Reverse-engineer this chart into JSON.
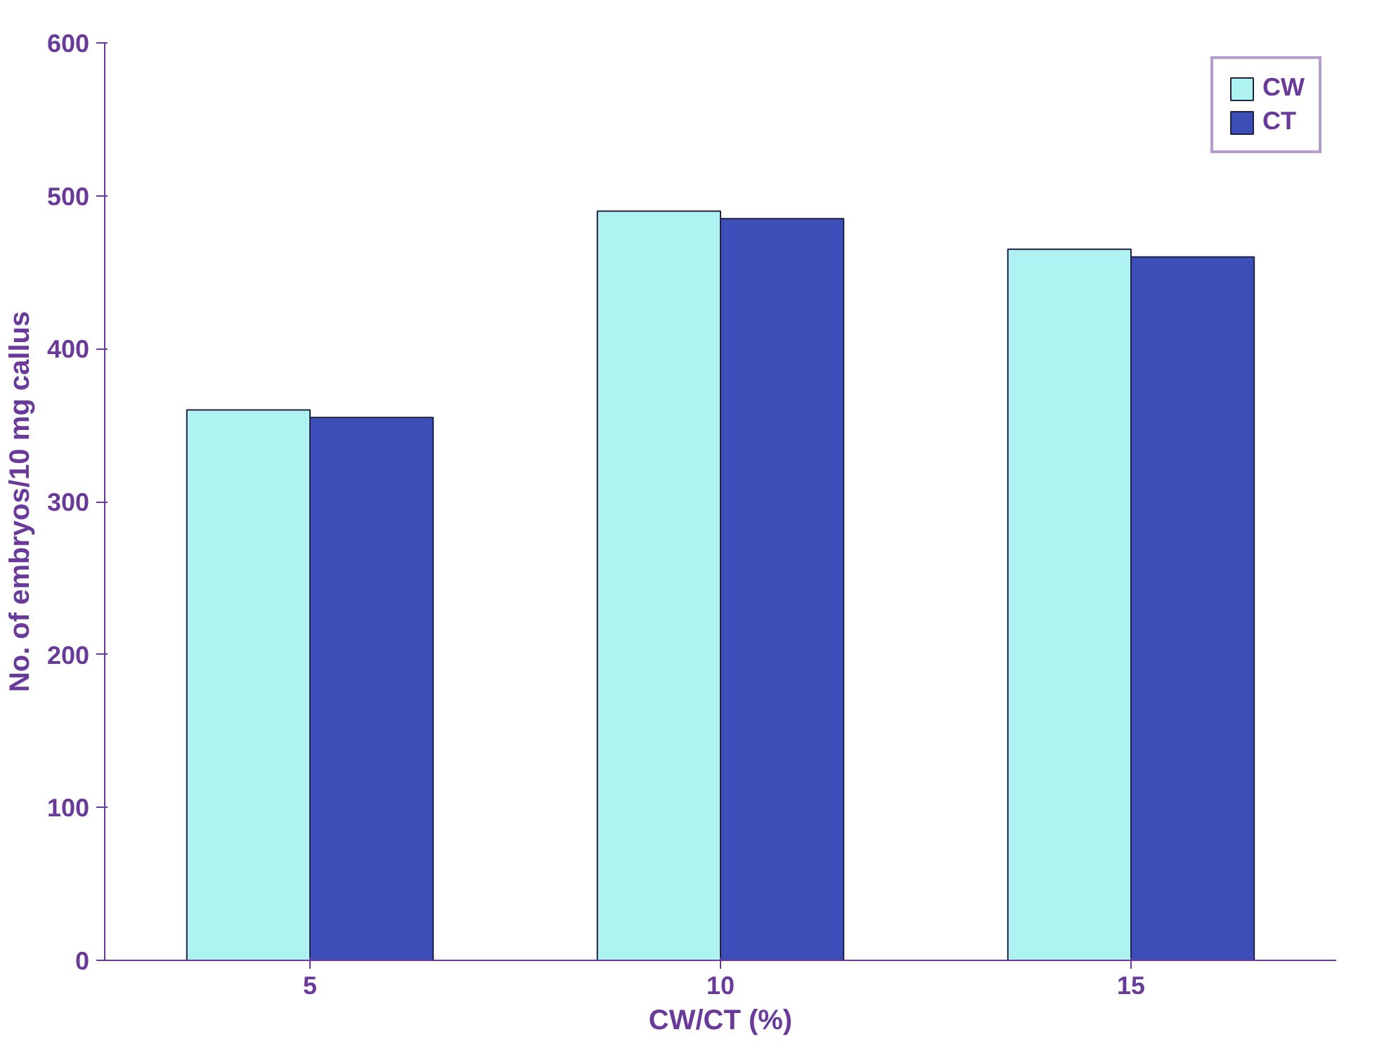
{
  "chart_data": {
    "type": "bar",
    "xlabel": "CW/CT (%)",
    "ylabel": "No. of embryos/10 mg callus",
    "categories": [
      "5",
      "10",
      "15"
    ],
    "series": [
      {
        "name": "CW",
        "color": "#aef2f2",
        "values": [
          360,
          490,
          465
        ]
      },
      {
        "name": "CT",
        "color": "#3c4fb8",
        "values": [
          355,
          485,
          460
        ]
      }
    ],
    "ylim": [
      0,
      600
    ],
    "yticks": [
      0,
      100,
      200,
      300,
      400,
      500,
      600
    ],
    "grid": false,
    "legend": "top right"
  }
}
